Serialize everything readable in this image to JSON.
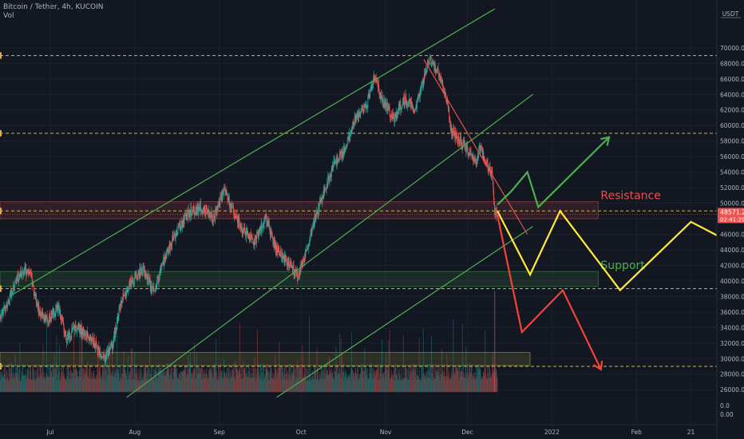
{
  "header": {
    "title": "Bitcoin / Tether, 4h, KUCOIN",
    "indicator": "Vol"
  },
  "chart_data": {
    "type": "candlestick",
    "quote_currency": "USDT",
    "price_axis": {
      "min": 24000,
      "max": 72000,
      "ticks": [
        "26000.0",
        "28000.0",
        "30000.0",
        "32000.0",
        "34000.0",
        "36000.0",
        "38000.0",
        "40000.0",
        "42000.0",
        "44000.0",
        "46000.0",
        "48000.0",
        "50000.0",
        "52000.0",
        "54000.0",
        "56000.0",
        "58000.0",
        "60000.0",
        "62000.0",
        "64000.0",
        "66000.0",
        "68000.0",
        "70000.0"
      ]
    },
    "volume_axis_ticks": [
      "0.0",
      "0.00"
    ],
    "time_axis": {
      "ticks": [
        {
          "label": "Jul",
          "day": 0
        },
        {
          "label": "Aug",
          "day": 31
        },
        {
          "label": "Sep",
          "day": 62
        },
        {
          "label": "Oct",
          "day": 92
        },
        {
          "label": "Nov",
          "day": 123
        },
        {
          "label": "Dec",
          "day": 153
        },
        {
          "label": "2022",
          "day": 184
        },
        {
          "label": "Feb",
          "day": 215
        },
        {
          "label": "21",
          "day": 235
        }
      ]
    },
    "current_price": {
      "value": "48571.2",
      "countdown": "02:41:29"
    },
    "ohlc_path": [
      {
        "day": -26,
        "price": 35000
      },
      {
        "day": -20,
        "price": 34000
      },
      {
        "day": -16,
        "price": 37000
      },
      {
        "day": -12,
        "price": 40500
      },
      {
        "day": -8,
        "price": 41500
      },
      {
        "day": -4,
        "price": 36000
      },
      {
        "day": -1,
        "price": 35000
      },
      {
        "day": 3,
        "price": 36500
      },
      {
        "day": 6,
        "price": 32500
      },
      {
        "day": 9,
        "price": 34000
      },
      {
        "day": 12,
        "price": 33500
      },
      {
        "day": 16,
        "price": 32000
      },
      {
        "day": 20,
        "price": 30000
      },
      {
        "day": 23,
        "price": 32000
      },
      {
        "day": 26,
        "price": 37500
      },
      {
        "day": 30,
        "price": 40000
      },
      {
        "day": 34,
        "price": 41500
      },
      {
        "day": 38,
        "price": 38500
      },
      {
        "day": 42,
        "price": 43000
      },
      {
        "day": 46,
        "price": 46000
      },
      {
        "day": 50,
        "price": 48500
      },
      {
        "day": 55,
        "price": 49500
      },
      {
        "day": 60,
        "price": 48000
      },
      {
        "day": 64,
        "price": 52000
      },
      {
        "day": 68,
        "price": 48000
      },
      {
        "day": 71,
        "price": 46500
      },
      {
        "day": 75,
        "price": 45000
      },
      {
        "day": 79,
        "price": 48000
      },
      {
        "day": 83,
        "price": 44000
      },
      {
        "day": 87,
        "price": 42500
      },
      {
        "day": 91,
        "price": 40500
      },
      {
        "day": 94,
        "price": 44000
      },
      {
        "day": 97,
        "price": 48000
      },
      {
        "day": 100,
        "price": 51000
      },
      {
        "day": 104,
        "price": 55000
      },
      {
        "day": 108,
        "price": 57000
      },
      {
        "day": 112,
        "price": 61000
      },
      {
        "day": 116,
        "price": 62500
      },
      {
        "day": 119,
        "price": 66500
      },
      {
        "day": 122,
        "price": 63000
      },
      {
        "day": 126,
        "price": 61000
      },
      {
        "day": 130,
        "price": 63500
      },
      {
        "day": 134,
        "price": 62000
      },
      {
        "day": 137,
        "price": 66000
      },
      {
        "day": 139,
        "price": 68500
      },
      {
        "day": 142,
        "price": 67000
      },
      {
        "day": 145,
        "price": 64000
      },
      {
        "day": 147,
        "price": 59500
      },
      {
        "day": 150,
        "price": 58000
      },
      {
        "day": 153,
        "price": 57000
      },
      {
        "day": 156,
        "price": 55000
      },
      {
        "day": 158,
        "price": 57500
      },
      {
        "day": 159,
        "price": 56000
      },
      {
        "day": 162,
        "price": 53500
      },
      {
        "day": 163,
        "price": 49000
      },
      {
        "day": 164,
        "price": 48500
      }
    ],
    "volume_level_range": [
      26000,
      30000
    ],
    "horizontal_levels": [
      69000,
      59000,
      49000,
      39000,
      29000
    ],
    "zones": [
      {
        "label": "Resistance",
        "from": 48000,
        "to": 50200,
        "day_end": 201,
        "color": "#e5534b"
      },
      {
        "label": "Support",
        "from": 39300,
        "to": 41200,
        "day_end": 201,
        "color": "#4caf50"
      },
      {
        "label": "",
        "from": 29100,
        "to": 30800,
        "day_end": 176,
        "color": "#c8c83c"
      }
    ],
    "channel_lines": [
      {
        "from": {
          "day": -15,
          "price": 38000
        },
        "to": {
          "day": 163,
          "price": 75000
        }
      },
      {
        "from": {
          "day": 28,
          "price": 25000
        },
        "to": {
          "day": 177,
          "price": 64000
        }
      },
      {
        "from": {
          "day": 83,
          "price": 25000
        },
        "to": {
          "day": 177,
          "price": 47000
        }
      }
    ],
    "trend_line": {
      "from": {
        "day": 137,
        "price": 68500
      },
      "to": {
        "day": 175,
        "price": 46000
      }
    },
    "scenarios": [
      {
        "color": "#4caf50",
        "points": [
          {
            "day": 164,
            "price": 49800
          },
          {
            "day": 169,
            "price": 51500
          },
          {
            "day": 175,
            "price": 54000
          },
          {
            "day": 179,
            "price": 49500
          },
          {
            "day": 205,
            "price": 58500
          }
        ]
      },
      {
        "color": "#ffeb3b",
        "points": [
          {
            "day": 164,
            "price": 49000
          },
          {
            "day": 176,
            "price": 40800
          },
          {
            "day": 187,
            "price": 49000
          },
          {
            "day": 209,
            "price": 38800
          },
          {
            "day": 235,
            "price": 47600
          },
          {
            "day": 257,
            "price": 43600
          }
        ]
      },
      {
        "color": "#f44336",
        "points": [
          {
            "day": 164,
            "price": 48500
          },
          {
            "day": 173,
            "price": 33400
          },
          {
            "day": 188,
            "price": 38800
          },
          {
            "day": 202,
            "price": 28600
          }
        ]
      }
    ]
  }
}
